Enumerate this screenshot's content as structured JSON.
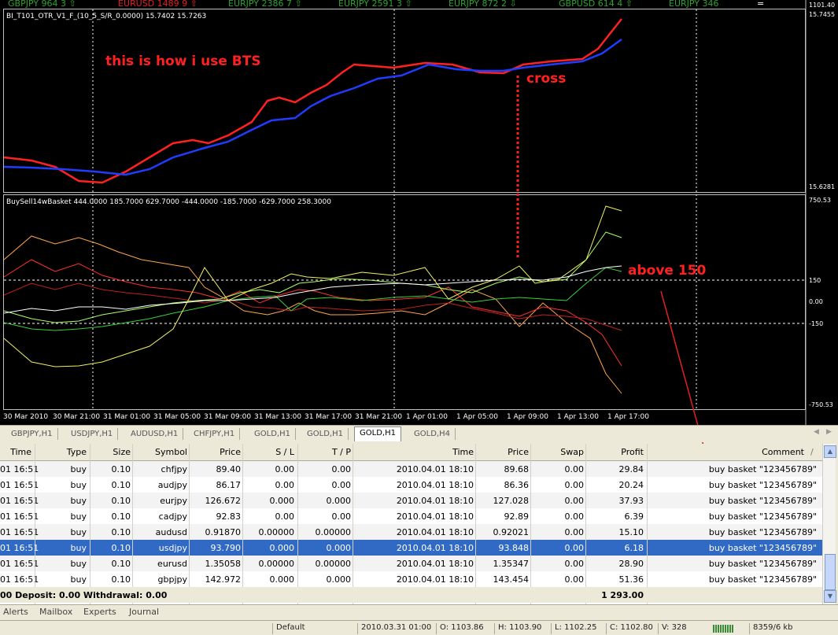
{
  "ticker": [
    {
      "name": "GBPJPY",
      "value": "964",
      "num": "3",
      "arrow": "⇧",
      "color": "#2fa02f"
    },
    {
      "name": "EURUSD",
      "value": "1489",
      "num": "9",
      "arrow": "⇧",
      "color": "#e02020"
    },
    {
      "name": "EURJPY",
      "value": "2386",
      "num": "7",
      "arrow": "⇧",
      "color": "#2fa02f"
    },
    {
      "name": "EURJPY",
      "value": "2591",
      "num": "3",
      "arrow": "⇧",
      "color": "#2fa02f"
    },
    {
      "name": "EURJPY",
      "value": "872",
      "num": "2",
      "arrow": "⇩",
      "color": "#2fa02f"
    },
    {
      "name": "GBPUSD",
      "value": "614",
      "num": "4",
      "arrow": "⇧",
      "color": "#2fa02f"
    },
    {
      "name": "EURJPY",
      "value": "346",
      "num": "",
      "arrow": "",
      "color": "#2fa02f"
    }
  ],
  "ticker_eq": "=",
  "upper": {
    "title": "BI_T101_OTR_V1_F_(10_5_S/R_0.0000) 15.7402 15.7263",
    "scale_top": "15.7455",
    "scale_bottom": "15.6281",
    "top_price": "1101.40",
    "annotation": "this is how i use BTS",
    "cross_label": "cross"
  },
  "lower": {
    "title": "BuySell14wBasket 444.0000 185.7000 629.7000 -444.0000 -185.7000 -629.7000 258.3000",
    "scale": [
      "750.53",
      "150",
      "0.00",
      "-150",
      "-750.53"
    ],
    "annotation": "above 150"
  },
  "time_axis": [
    "30 Mar 2010",
    "30 Mar 21:00",
    "31 Mar 01:00",
    "31 Mar 05:00",
    "31 Mar 09:00",
    "31 Mar 13:00",
    "31 Mar 17:00",
    "31 Mar 21:00",
    "1 Apr 01:00",
    "1 Apr 05:00",
    "1 Apr 09:00",
    "1 Apr 13:00",
    "1 Apr 17:00"
  ],
  "chart_tabs": [
    "GBPJPY,H1",
    "USDJPY,H1",
    "AUDUSD,H1",
    "CHFJPY,H1",
    "GOLD,H1",
    "GOLD,H1",
    "GOLD,H1",
    "GOLD,H4"
  ],
  "active_tab": 6,
  "terminal": {
    "headers": [
      "Time",
      "Type",
      "Size",
      "Symbol",
      "Price",
      "S / L",
      "T / P",
      "Time",
      "Price",
      "Swap",
      "Profit",
      "Comment"
    ],
    "rows": [
      [
        "01 16:51",
        "buy",
        "0.10",
        "chfjpy",
        "89.40",
        "0.00",
        "0.00",
        "2010.04.01 18:10",
        "89.68",
        "0.00",
        "29.84",
        "buy basket  \"123456789\""
      ],
      [
        "01 16:51",
        "buy",
        "0.10",
        "audjpy",
        "86.17",
        "0.00",
        "0.00",
        "2010.04.01 18:10",
        "86.36",
        "0.00",
        "20.24",
        "buy basket  \"123456789\""
      ],
      [
        "01 16:51",
        "buy",
        "0.10",
        "eurjpy",
        "126.672",
        "0.000",
        "0.000",
        "2010.04.01 18:10",
        "127.028",
        "0.00",
        "37.93",
        "buy basket  \"123456789\""
      ],
      [
        "01 16:51",
        "buy",
        "0.10",
        "cadjpy",
        "92.83",
        "0.00",
        "0.00",
        "2010.04.01 18:10",
        "92.89",
        "0.00",
        "6.39",
        "buy basket  \"123456789\""
      ],
      [
        "01 16:51",
        "buy",
        "0.10",
        "audusd",
        "0.91870",
        "0.00000",
        "0.00000",
        "2010.04.01 18:10",
        "0.92021",
        "0.00",
        "15.10",
        "buy basket  \"123456789\""
      ],
      [
        "01 16:51",
        "buy",
        "0.10",
        "usdjpy",
        "93.790",
        "0.000",
        "0.000",
        "2010.04.01 18:10",
        "93.848",
        "0.00",
        "6.18",
        "buy basket  \"123456789\""
      ],
      [
        "01 16:51",
        "buy",
        "0.10",
        "eurusd",
        "1.35058",
        "0.00000",
        "0.00000",
        "2010.04.01 18:10",
        "1.35347",
        "0.00",
        "28.90",
        "buy basket  \"123456789\""
      ],
      [
        "01 16:51",
        "buy",
        "0.10",
        "gbpjpy",
        "142.972",
        "0.000",
        "0.000",
        "2010.04.01 18:10",
        "143.454",
        "0.00",
        "51.36",
        "buy basket  \"123456789\""
      ]
    ],
    "selected_row": 5,
    "summary": "00  Deposit: 0.00  Withdrawal: 0.00",
    "summary_profit": "1 293.00"
  },
  "bottom_tabs": [
    "Alerts",
    "Mailbox",
    "Experts",
    "Journal"
  ],
  "status": {
    "profile": "Default",
    "datetime": "2010.03.31 01:00",
    "open": "O: 1103.86",
    "high": "H: 1103.90",
    "low": "L: 1102.25",
    "close": "C: 1102.80",
    "volume": "V: 328",
    "traffic": "8359/6 kb"
  },
  "colors": {
    "red_line": "#ff2020",
    "blue_line": "#1f3cff",
    "selection": "#316ac5"
  }
}
